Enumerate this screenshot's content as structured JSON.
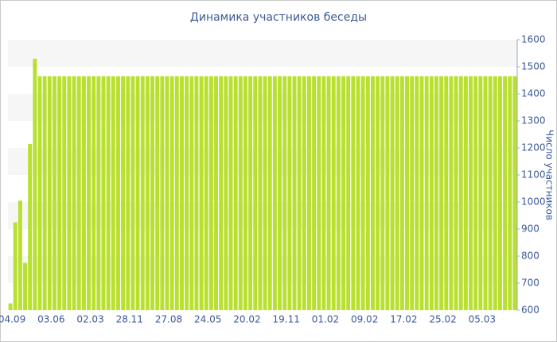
{
  "chart_data": {
    "type": "bar",
    "title": "Динамика участников беседы",
    "y_label": "Число участников",
    "categories": [
      "04.09",
      null,
      null,
      null,
      null,
      null,
      null,
      null,
      "03.06",
      null,
      null,
      null,
      null,
      null,
      null,
      null,
      "02.03",
      null,
      null,
      null,
      null,
      null,
      null,
      null,
      "28.11",
      null,
      null,
      null,
      null,
      null,
      null,
      null,
      "27.08",
      null,
      null,
      null,
      null,
      null,
      null,
      null,
      "24.05",
      null,
      null,
      null,
      null,
      null,
      null,
      null,
      "20.02",
      null,
      null,
      null,
      null,
      null,
      null,
      null,
      "19.11",
      null,
      null,
      null,
      null,
      null,
      null,
      null,
      "01.02",
      null,
      null,
      null,
      null,
      null,
      null,
      null,
      "09.02",
      null,
      null,
      null,
      null,
      null,
      null,
      null,
      "17.02",
      null,
      null,
      null,
      null,
      null,
      null,
      null,
      "25.02",
      null,
      null,
      null,
      null,
      null,
      null,
      null,
      "05.03",
      null,
      null,
      null,
      null,
      null,
      null,
      null
    ],
    "values": [
      625,
      925,
      1005,
      775,
      1215,
      1530,
      1465,
      1465,
      1465,
      1465,
      1465,
      1465,
      1465,
      1465,
      1465,
      1465,
      1465,
      1465,
      1465,
      1465,
      1465,
      1465,
      1465,
      1465,
      1465,
      1465,
      1465,
      1465,
      1465,
      1465,
      1465,
      1465,
      1465,
      1465,
      1465,
      1465,
      1465,
      1465,
      1465,
      1465,
      1465,
      1465,
      1465,
      1465,
      1465,
      1465,
      1465,
      1465,
      1465,
      1465,
      1465,
      1465,
      1465,
      1465,
      1465,
      1465,
      1465,
      1465,
      1465,
      1465,
      1465,
      1465,
      1465,
      1465,
      1465,
      1465,
      1465,
      1465,
      1465,
      1465,
      1465,
      1465,
      1465,
      1465,
      1465,
      1465,
      1465,
      1465,
      1465,
      1465,
      1465,
      1465,
      1465,
      1465,
      1465,
      1465,
      1465,
      1465,
      1465,
      1465,
      1465,
      1465,
      1465,
      1465,
      1465,
      1465,
      1465,
      1465,
      1465,
      1465,
      1465,
      1465,
      1465,
      1465
    ],
    "color": "#b8e02f",
    "ylim": [
      600,
      1600
    ],
    "yticks": [
      600,
      700,
      800,
      900,
      1000,
      1100,
      1200,
      1300,
      1400,
      1500,
      1600
    ],
    "grid": true
  }
}
